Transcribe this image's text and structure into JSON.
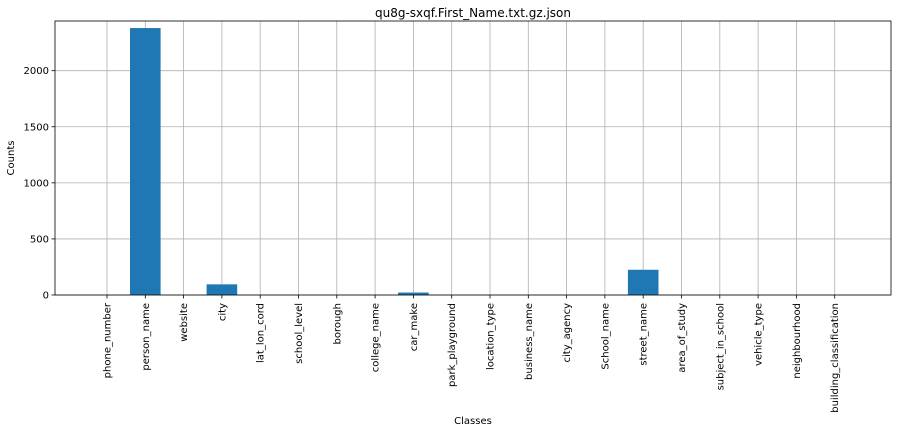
{
  "chart_data": {
    "type": "bar",
    "title": "qu8g-sxqf.First_Name.txt.gz.json",
    "xlabel": "Classes",
    "ylabel": "Counts",
    "categories": [
      "phone_number",
      "person_name",
      "website",
      "city",
      "lat_lon_cord",
      "school_level",
      "borough",
      "college_name",
      "car_make",
      "park_playground",
      "location_type",
      "business_name",
      "city_agency",
      "School_name",
      "street_name",
      "area_of_study",
      "subject_in_school",
      "vehicle_type",
      "neighbourhood",
      "building_classification"
    ],
    "values": [
      0,
      2380,
      0,
      95,
      0,
      0,
      0,
      0,
      22,
      0,
      0,
      0,
      0,
      0,
      225,
      0,
      0,
      0,
      0,
      0
    ],
    "ylim": [
      0,
      2443
    ],
    "yticks": [
      0,
      500,
      1000,
      1500,
      2000
    ],
    "grid": true,
    "bar_color": "#1f77b4"
  }
}
